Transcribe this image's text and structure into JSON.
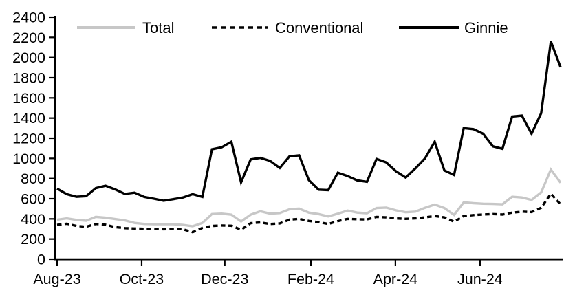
{
  "chart_data": {
    "type": "line",
    "title": "",
    "xlabel": "",
    "ylabel": "",
    "ylim": [
      0,
      2400
    ],
    "ytick_step": 200,
    "grid": false,
    "legend_position": "top-inside",
    "x_ticks": [
      {
        "label": "Aug-23",
        "pos": 0.0
      },
      {
        "label": "Oct-23",
        "pos": 0.168
      },
      {
        "label": "Dec-23",
        "pos": 0.333
      },
      {
        "label": "Feb-24",
        "pos": 0.504
      },
      {
        "label": "Apr-24",
        "pos": 0.672
      },
      {
        "label": "Jun-24",
        "pos": 0.84
      }
    ],
    "x_range_note": "weekly observations, Aug-23 through early Aug-24",
    "series": [
      {
        "name": "Total",
        "color": "#c7c7c7",
        "style": "solid",
        "values": [
          392,
          405,
          390,
          382,
          420,
          412,
          398,
          385,
          360,
          350,
          348,
          347,
          347,
          340,
          327,
          360,
          448,
          452,
          442,
          374,
          442,
          475,
          452,
          458,
          495,
          502,
          462,
          448,
          425,
          452,
          483,
          462,
          456,
          508,
          512,
          485,
          466,
          472,
          510,
          542,
          508,
          440,
          564,
          556,
          550,
          548,
          545,
          620,
          612,
          588,
          662,
          890,
          758
        ]
      },
      {
        "name": "Conventional",
        "color": "#000000",
        "style": "dashed",
        "values": [
          340,
          352,
          330,
          322,
          350,
          342,
          318,
          308,
          305,
          302,
          300,
          297,
          300,
          297,
          268,
          310,
          330,
          335,
          332,
          292,
          358,
          365,
          350,
          355,
          393,
          400,
          380,
          368,
          350,
          378,
          400,
          396,
          395,
          420,
          415,
          405,
          400,
          405,
          415,
          428,
          415,
          372,
          428,
          438,
          443,
          448,
          443,
          462,
          472,
          468,
          510,
          650,
          545
        ]
      },
      {
        "name": "Ginnie",
        "color": "#000000",
        "style": "solid",
        "values": [
          700,
          645,
          620,
          625,
          705,
          728,
          692,
          648,
          660,
          618,
          600,
          580,
          595,
          612,
          645,
          618,
          1090,
          1110,
          1165,
          762,
          990,
          1005,
          975,
          905,
          1020,
          1030,
          785,
          690,
          685,
          858,
          825,
          782,
          768,
          995,
          960,
          872,
          810,
          900,
          1000,
          1165,
          880,
          835,
          1300,
          1290,
          1245,
          1120,
          1095,
          1415,
          1425,
          1245,
          1448,
          2160,
          1905
        ]
      }
    ],
    "ytick_labels": [
      "0",
      "200",
      "400",
      "600",
      "800",
      "1000",
      "1200",
      "1400",
      "1600",
      "1800",
      "2000",
      "2200",
      "2400"
    ]
  },
  "colors": {
    "axis": "#000000",
    "background": "#ffffff",
    "total_line": "#c7c7c7",
    "black_line": "#000000"
  }
}
